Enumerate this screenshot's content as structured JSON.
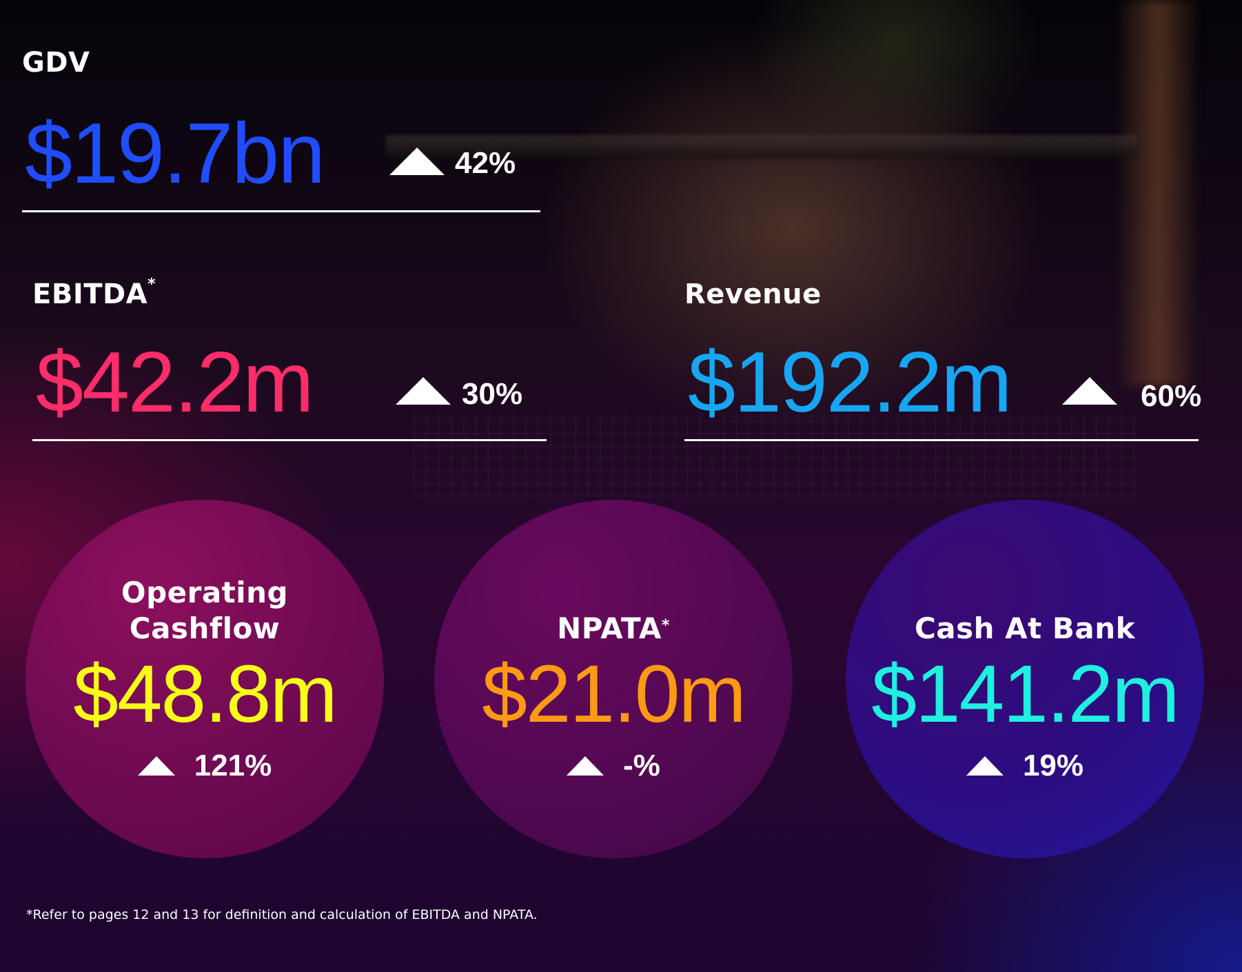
{
  "colors": {
    "gdv": "#1f4dff",
    "ebitda": "#ff2d6a",
    "revenue": "#16a6f2",
    "operating_cashflow": "#f6ff1a",
    "npata": "#ff9a14",
    "cash_at_bank": "#1ff0e0"
  },
  "gdv": {
    "label": "GDV",
    "value": "$19.7bn",
    "change": "42%",
    "direction_icon": "up-triangle-icon"
  },
  "ebitda": {
    "label": "EBITDA",
    "marker": "*",
    "value": "$42.2m",
    "change": "30%",
    "direction_icon": "up-triangle-icon"
  },
  "revenue": {
    "label": "Revenue",
    "value": "$192.2m",
    "change": "60%",
    "direction_icon": "up-triangle-icon"
  },
  "operating_cashflow": {
    "label_line1": "Operating",
    "label_line2": "Cashflow",
    "value": "$48.8m",
    "change": "121%",
    "direction_icon": "up-triangle-icon"
  },
  "npata": {
    "label": "NPATA",
    "marker": "*",
    "value": "$21.0m",
    "change": "-%",
    "direction_icon": "up-triangle-icon"
  },
  "cash_at_bank": {
    "label": "Cash At Bank",
    "value": "$141.2m",
    "change": "19%",
    "direction_icon": "up-triangle-icon"
  },
  "footnote": "*Refer to pages 12 and 13 for definition and calculation of EBITDA and NPATA."
}
